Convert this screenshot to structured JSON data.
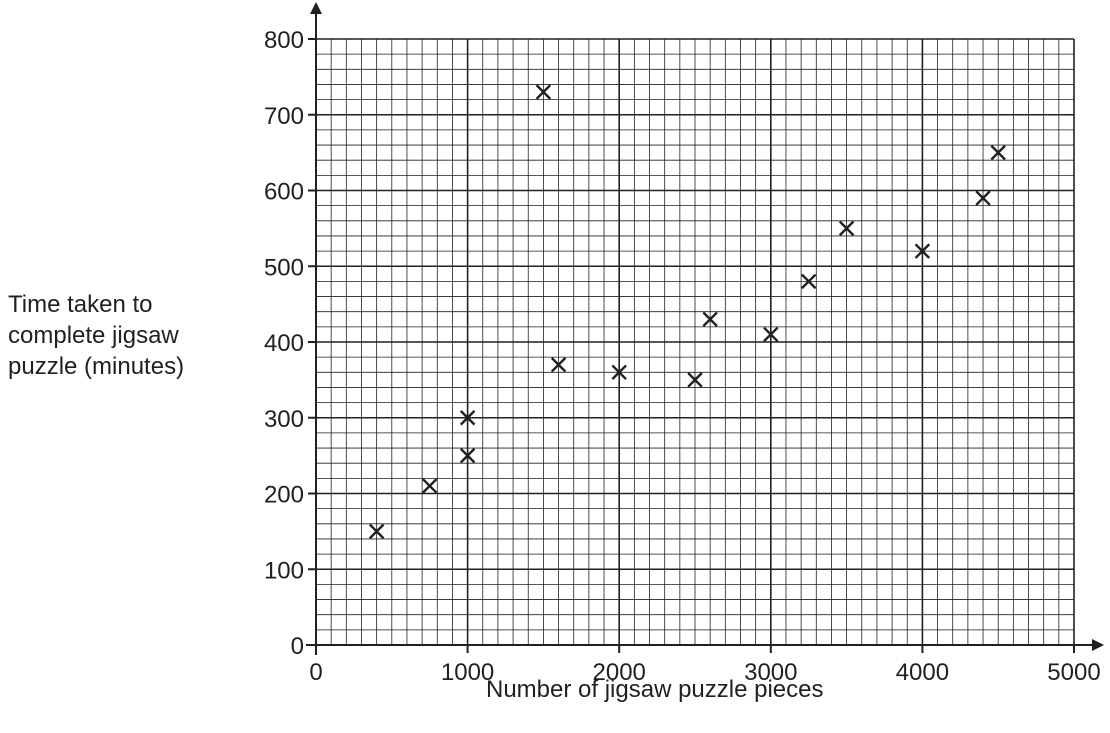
{
  "chart_data": {
    "type": "scatter",
    "title": "",
    "xlabel": "Number of jigsaw puzzle pieces",
    "ylabel_lines": [
      "Time taken to",
      "complete jigsaw",
      "puzzle (minutes)"
    ],
    "xlim": [
      0,
      5000
    ],
    "ylim": [
      0,
      800
    ],
    "x_major_step": 1000,
    "y_major_step": 100,
    "x_minor_step": 100,
    "y_minor_step": 20,
    "x_ticks": [
      "0",
      "1000",
      "2000",
      "3000",
      "4000",
      "5000"
    ],
    "y_ticks": [
      "0",
      "100",
      "200",
      "300",
      "400",
      "500",
      "600",
      "700",
      "800"
    ],
    "grid": true,
    "marker": "x",
    "points": [
      {
        "x": 400,
        "y": 150
      },
      {
        "x": 750,
        "y": 210
      },
      {
        "x": 1000,
        "y": 250
      },
      {
        "x": 1000,
        "y": 300
      },
      {
        "x": 1500,
        "y": 730
      },
      {
        "x": 1600,
        "y": 370
      },
      {
        "x": 2000,
        "y": 360
      },
      {
        "x": 2500,
        "y": 350
      },
      {
        "x": 2600,
        "y": 430
      },
      {
        "x": 3000,
        "y": 410
      },
      {
        "x": 3250,
        "y": 480
      },
      {
        "x": 3500,
        "y": 550
      },
      {
        "x": 4000,
        "y": 520
      },
      {
        "x": 4400,
        "y": 590
      },
      {
        "x": 4500,
        "y": 650
      }
    ]
  }
}
